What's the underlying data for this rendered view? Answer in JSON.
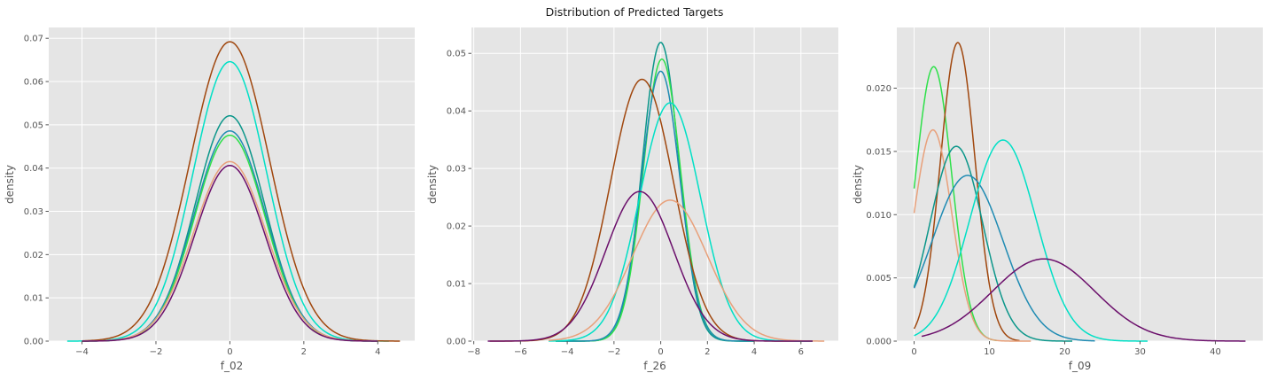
{
  "figure": {
    "suptitle": "Distribution of Predicted Targets",
    "background": "#ffffff",
    "plot_background": "#e5e5e5",
    "grid_color": "#ffffff"
  },
  "chart_data": [
    {
      "type": "line",
      "xlabel": "f_02",
      "ylabel": "density",
      "xlim": [
        -4.9,
        5.0
      ],
      "ylim": [
        0,
        0.0725
      ],
      "xticks": [
        -4,
        -2,
        0,
        2,
        4
      ],
      "yticks": [
        0.0,
        0.01,
        0.02,
        0.03,
        0.04,
        0.05,
        0.06,
        0.07
      ],
      "yticks_labels": [
        "0.00",
        "0.01",
        "0.02",
        "0.03",
        "0.04",
        "0.05",
        "0.06",
        "0.07"
      ],
      "grid": true,
      "distribution": "normal",
      "series": [
        {
          "color": "#00e0c6",
          "mean": 0.0,
          "peak": 0.0646,
          "sd": 0.99,
          "x_range": [
            -4.4,
            4.3
          ]
        },
        {
          "color": "#a0470e",
          "mean": 0.0,
          "peak": 0.0692,
          "sd": 1.07,
          "x_range": [
            -4.0,
            4.6
          ]
        },
        {
          "color": "#0b968a",
          "mean": 0.0,
          "peak": 0.0521,
          "sd": 0.94,
          "x_range": [
            -4.0,
            4.0
          ]
        },
        {
          "color": "#1f8bb3",
          "mean": 0.0,
          "peak": 0.0486,
          "sd": 0.96,
          "x_range": [
            -4.0,
            4.0
          ]
        },
        {
          "color": "#2ee04a",
          "mean": 0.0,
          "peak": 0.0476,
          "sd": 0.95,
          "x_range": [
            -4.0,
            4.0
          ]
        },
        {
          "color": "#e8a07a",
          "mean": 0.0,
          "peak": 0.0415,
          "sd": 0.98,
          "x_range": [
            -4.0,
            4.0
          ]
        },
        {
          "color": "#6b0f6b",
          "mean": 0.0,
          "peak": 0.0406,
          "sd": 0.95,
          "x_range": [
            -4.0,
            4.0
          ]
        }
      ]
    },
    {
      "type": "line",
      "xlabel": "f_26",
      "ylabel": "density",
      "xlim": [
        -8.1,
        7.6
      ],
      "ylim": [
        0,
        0.0545
      ],
      "xticks": [
        -8,
        -6,
        -4,
        -2,
        0,
        2,
        4,
        6
      ],
      "yticks": [
        0.0,
        0.01,
        0.02,
        0.03,
        0.04,
        0.05
      ],
      "yticks_labels": [
        "0.00",
        "0.01",
        "0.02",
        "0.03",
        "0.04",
        "0.05"
      ],
      "grid": true,
      "distribution": "normal",
      "series": [
        {
          "color": "#0b968a",
          "mean": 0.0,
          "peak": 0.0519,
          "sd": 0.78,
          "x_range": [
            -4.5,
            4.0
          ]
        },
        {
          "color": "#2ee04a",
          "mean": 0.05,
          "peak": 0.049,
          "sd": 0.8,
          "x_range": [
            -4.5,
            4.0
          ]
        },
        {
          "color": "#1f8bb3",
          "mean": 0.0,
          "peak": 0.0469,
          "sd": 0.82,
          "x_range": [
            -4.5,
            4.0
          ]
        },
        {
          "color": "#a0470e",
          "mean": -0.8,
          "peak": 0.0455,
          "sd": 1.35,
          "x_range": [
            -7.3,
            6.5
          ]
        },
        {
          "color": "#00e0c6",
          "mean": 0.4,
          "peak": 0.0414,
          "sd": 1.3,
          "x_range": [
            -4.8,
            6.5
          ]
        },
        {
          "color": "#e8a07a",
          "mean": 0.4,
          "peak": 0.0245,
          "sd": 1.6,
          "x_range": [
            -4.8,
            7.0
          ]
        },
        {
          "color": "#6b0f6b",
          "mean": -0.9,
          "peak": 0.026,
          "sd": 1.45,
          "x_range": [
            -7.4,
            6.5
          ]
        }
      ]
    },
    {
      "type": "line",
      "xlabel": "f_09",
      "ylabel": "density",
      "xlim": [
        -2.3,
        46.3
      ],
      "ylim": [
        0,
        0.0248
      ],
      "xticks": [
        0,
        10,
        20,
        30,
        40
      ],
      "yticks": [
        0.0,
        0.005,
        0.01,
        0.015,
        0.02
      ],
      "yticks_labels": [
        "0.000",
        "0.005",
        "0.010",
        "0.015",
        "0.020"
      ],
      "grid": true,
      "distribution": "normal",
      "series": [
        {
          "color": "#2ee04a",
          "mean": 2.6,
          "peak": 0.0217,
          "sd": 2.4,
          "x_range": [
            0.0,
            11.0
          ]
        },
        {
          "color": "#a0470e",
          "mean": 5.8,
          "peak": 0.0236,
          "sd": 2.3,
          "x_range": [
            0.0,
            14.0
          ]
        },
        {
          "color": "#e8a07a",
          "mean": 2.5,
          "peak": 0.0167,
          "sd": 2.5,
          "x_range": [
            0.0,
            15.5
          ]
        },
        {
          "color": "#0b968a",
          "mean": 5.6,
          "peak": 0.0154,
          "sd": 3.5,
          "x_range": [
            0.0,
            21.0
          ]
        },
        {
          "color": "#1f8bb3",
          "mean": 7.1,
          "peak": 0.0131,
          "sd": 4.7,
          "x_range": [
            0.0,
            24.0
          ]
        },
        {
          "color": "#00e0c6",
          "mean": 11.8,
          "peak": 0.0159,
          "sd": 4.4,
          "x_range": [
            0.0,
            31.0
          ]
        },
        {
          "color": "#6b0f6b",
          "mean": 17.2,
          "peak": 0.0065,
          "sd": 6.8,
          "x_range": [
            1.0,
            44.0
          ]
        }
      ]
    }
  ]
}
